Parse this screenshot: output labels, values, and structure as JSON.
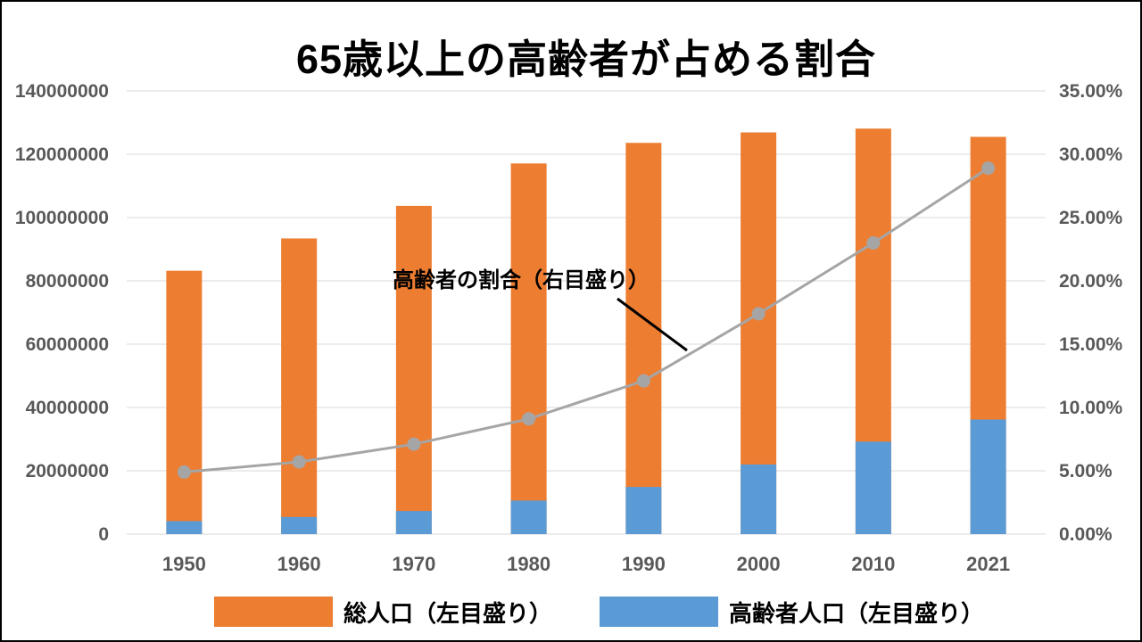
{
  "title": "65歳以上の高齢者が占める割合",
  "chart_data": {
    "type": "combo",
    "title": "65歳以上の高齢者が占める割合",
    "categories": [
      "1950",
      "1960",
      "1970",
      "1980",
      "1990",
      "2000",
      "2010",
      "2021"
    ],
    "series": [
      {
        "name": "総人口（左目盛り）",
        "type": "bar",
        "axis": "left",
        "color": "#ED7D31",
        "values": [
          83200000,
          93400000,
          103700000,
          117100000,
          123600000,
          126900000,
          128100000,
          125500000
        ]
      },
      {
        "name": "高齢者人口（左目盛り）",
        "type": "bar",
        "axis": "left",
        "color": "#5B9BD5",
        "values": [
          4100000,
          5400000,
          7300000,
          10600000,
          14900000,
          22000000,
          29200000,
          36200000
        ]
      },
      {
        "name": "高齢者の割合（右目盛り）",
        "type": "line",
        "axis": "right",
        "color": "#A5A5A5",
        "marker": "circle",
        "values": [
          4.9,
          5.7,
          7.1,
          9.1,
          12.1,
          17.4,
          23.0,
          28.9
        ]
      }
    ],
    "left_axis": {
      "min": 0,
      "max": 140000000,
      "step": 20000000,
      "tick_labels": [
        "140000000",
        "120000000",
        "100000000",
        "80000000",
        "60000000",
        "40000000",
        "20000000",
        "0"
      ]
    },
    "right_axis": {
      "min": 0,
      "max": 35,
      "step": 5,
      "tick_labels": [
        "35.00%",
        "30.00%",
        "25.00%",
        "20.00%",
        "15.00%",
        "10.00%",
        "5.00%",
        "0.00%"
      ]
    },
    "grid": true,
    "gridline_color": "#D9D9D9",
    "axis_label_color": "#595959",
    "legend_position": "bottom"
  },
  "annotation": {
    "label": "高齢者の割合（右目盛り）"
  },
  "legend": {
    "items": [
      {
        "label": "総人口（左目盛り）",
        "color": "#ED7D31"
      },
      {
        "label": "高齢者人口（左目盛り）",
        "color": "#5B9BD5"
      }
    ]
  }
}
